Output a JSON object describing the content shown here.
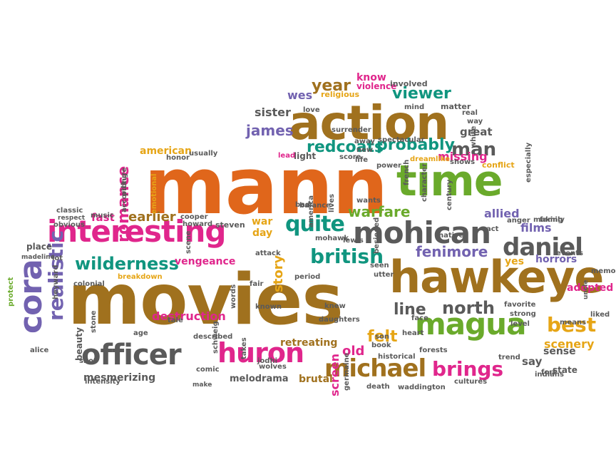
{
  "colors": {
    "brown": "#a0711e",
    "orange": "#e0661b",
    "green": "#6aaa2b",
    "pink": "#e0268c",
    "teal": "#10957f",
    "gray": "#5a5a5a",
    "purple": "#7262b0",
    "gold": "#e6a516"
  },
  "words": [
    {
      "text": "mann",
      "color": "orange",
      "weight": 10,
      "rotation": 0
    },
    {
      "text": "movies",
      "color": "brown",
      "weight": 10,
      "rotation": 0
    },
    {
      "text": "action",
      "color": "brown",
      "weight": 8,
      "rotation": 0
    },
    {
      "text": "hawkeye",
      "color": "brown",
      "weight": 8,
      "rotation": 0
    },
    {
      "text": "time",
      "color": "green",
      "weight": 7,
      "rotation": 0
    },
    {
      "text": "interesting",
      "color": "pink",
      "weight": 6,
      "rotation": 0
    },
    {
      "text": "mohican",
      "color": "gray",
      "weight": 6,
      "rotation": 0
    },
    {
      "text": "officer",
      "color": "gray",
      "weight": 6,
      "rotation": 0
    },
    {
      "text": "cora",
      "color": "purple",
      "weight": 6,
      "rotation": -90
    },
    {
      "text": "huron",
      "color": "pink",
      "weight": 5,
      "rotation": 0
    },
    {
      "text": "magua",
      "color": "green",
      "weight": 5,
      "rotation": 0
    },
    {
      "text": "daniel",
      "color": "gray",
      "weight": 5,
      "rotation": 0
    },
    {
      "text": "michael",
      "color": "brown",
      "weight": 5,
      "rotation": 0
    },
    {
      "text": "quite",
      "color": "teal",
      "weight": 5,
      "rotation": 0
    },
    {
      "text": "british",
      "color": "teal",
      "weight": 4,
      "rotation": 0
    },
    {
      "text": "wilderness",
      "color": "teal",
      "weight": 4,
      "rotation": 0
    },
    {
      "text": "realistic",
      "color": "purple",
      "weight": 4,
      "rotation": -90
    },
    {
      "text": "man",
      "color": "gray",
      "weight": 4,
      "rotation": 0
    },
    {
      "text": "redcoats",
      "color": "teal",
      "weight": 4,
      "rotation": 0
    },
    {
      "text": "probably",
      "color": "teal",
      "weight": 4,
      "rotation": 0
    },
    {
      "text": "viewer",
      "color": "teal",
      "weight": 4,
      "rotation": 0
    },
    {
      "text": "year",
      "color": "brown",
      "weight": 4,
      "rotation": 0
    },
    {
      "text": "james",
      "color": "purple",
      "weight": 3,
      "rotation": 0
    },
    {
      "text": "sister",
      "color": "gray",
      "weight": 3,
      "rotation": 0
    },
    {
      "text": "north",
      "color": "gray",
      "weight": 4,
      "rotation": 0
    },
    {
      "text": "line",
      "color": "gray",
      "weight": 4,
      "rotation": 0
    },
    {
      "text": "best",
      "color": "gold",
      "weight": 4,
      "rotation": 0
    },
    {
      "text": "brings",
      "color": "pink",
      "weight": 4,
      "rotation": 0
    },
    {
      "text": "fenimore",
      "color": "purple",
      "weight": 3,
      "rotation": 0
    },
    {
      "text": "felt",
      "color": "gold",
      "weight": 4,
      "rotation": 0
    },
    {
      "text": "romance",
      "color": "pink",
      "weight": 3,
      "rotation": -90
    },
    {
      "text": "warfare",
      "color": "green",
      "weight": 3,
      "rotation": 0
    },
    {
      "text": "films",
      "color": "purple",
      "weight": 3,
      "rotation": 0
    },
    {
      "text": "allied",
      "color": "purple",
      "weight": 3,
      "rotation": 0
    },
    {
      "text": "earlier",
      "color": "brown",
      "weight": 3,
      "rotation": 0
    },
    {
      "text": "american",
      "color": "gold",
      "weight": 2,
      "rotation": 0
    },
    {
      "text": "destruction",
      "color": "pink",
      "weight": 2,
      "rotation": 0
    },
    {
      "text": "mesmerizing",
      "color": "gray",
      "weight": 2,
      "rotation": 0
    },
    {
      "text": "melodrama",
      "color": "gray",
      "weight": 2,
      "rotation": 0
    },
    {
      "text": "brutal",
      "color": "brown",
      "weight": 2,
      "rotation": 0
    },
    {
      "text": "retreating",
      "color": "brown",
      "weight": 2,
      "rotation": 0
    },
    {
      "text": "vengeance",
      "color": "pink",
      "weight": 2,
      "rotation": 0
    },
    {
      "text": "story",
      "color": "gold",
      "weight": 3,
      "rotation": -90
    },
    {
      "text": "screen",
      "color": "pink",
      "weight": 2,
      "rotation": -90
    },
    {
      "text": "old",
      "color": "pink",
      "weight": 3,
      "rotation": 0
    },
    {
      "text": "scenery",
      "color": "gold",
      "weight": 2,
      "rotation": 0
    },
    {
      "text": "sense",
      "color": "gray",
      "weight": 2,
      "rotation": 0
    },
    {
      "text": "say",
      "color": "gray",
      "weight": 2,
      "rotation": 0
    },
    {
      "text": "state",
      "color": "gray",
      "weight": 1,
      "rotation": 0
    },
    {
      "text": "adopted",
      "color": "pink",
      "weight": 2,
      "rotation": 0
    },
    {
      "text": "horrors",
      "color": "purple",
      "weight": 2,
      "rotation": 0
    },
    {
      "text": "yes",
      "color": "gold",
      "weight": 2,
      "rotation": 0
    },
    {
      "text": "great",
      "color": "gray",
      "weight": 2,
      "rotation": 0
    },
    {
      "text": "missing",
      "color": "pink",
      "weight": 2,
      "rotation": 0
    },
    {
      "text": "conflict",
      "color": "gold",
      "weight": 1,
      "rotation": 0
    },
    {
      "text": "war",
      "color": "gold",
      "weight": 2,
      "rotation": 0
    },
    {
      "text": "day",
      "color": "gold",
      "weight": 2,
      "rotation": 0
    },
    {
      "text": "fast",
      "color": "pink",
      "weight": 2,
      "rotation": 0
    },
    {
      "text": "wes",
      "color": "purple",
      "weight": 2,
      "rotation": 0
    },
    {
      "text": "know",
      "color": "pink",
      "weight": 2,
      "rotation": 0
    },
    {
      "text": "violence",
      "color": "pink",
      "weight": 1,
      "rotation": 0
    },
    {
      "text": "religious",
      "color": "gold",
      "weight": 1,
      "rotation": 0
    },
    {
      "text": "involved",
      "color": "gray",
      "weight": 1,
      "rotation": 0
    },
    {
      "text": "matter",
      "color": "gray",
      "weight": 1,
      "rotation": 0
    },
    {
      "text": "real",
      "color": "gray",
      "weight": 1,
      "rotation": 0
    },
    {
      "text": "way",
      "color": "gray",
      "weight": 1,
      "rotation": 0
    },
    {
      "text": "light",
      "color": "gray",
      "weight": 1,
      "rotation": 0
    },
    {
      "text": "score",
      "color": "gray",
      "weight": 1,
      "rotation": 0
    },
    {
      "text": "life",
      "color": "gray",
      "weight": 1,
      "rotation": 0
    },
    {
      "text": "new",
      "color": "gray",
      "weight": 1,
      "rotation": 0
    },
    {
      "text": "away",
      "color": "gray",
      "weight": 1,
      "rotation": 0
    },
    {
      "text": "dreamlike",
      "color": "gold",
      "weight": 1,
      "rotation": 0
    },
    {
      "text": "lead",
      "color": "pink",
      "weight": 1,
      "rotation": 0
    },
    {
      "text": "usually",
      "color": "gray",
      "weight": 1,
      "rotation": 0
    },
    {
      "text": "honor",
      "color": "gray",
      "weight": 1,
      "rotation": 0
    },
    {
      "text": "according",
      "color": "gray",
      "weight": 1,
      "rotation": -90
    },
    {
      "text": "emotional",
      "color": "gold",
      "weight": 1,
      "rotation": -90
    },
    {
      "text": "picture",
      "color": "gray",
      "weight": 1,
      "rotation": -90
    },
    {
      "text": "classic",
      "color": "gray",
      "weight": 1,
      "rotation": 0
    },
    {
      "text": "respect",
      "color": "gray",
      "weight": 1,
      "rotation": 0
    },
    {
      "text": "obvious",
      "color": "gray",
      "weight": 1,
      "rotation": 0
    },
    {
      "text": "music",
      "color": "gray",
      "weight": 1,
      "rotation": 0
    },
    {
      "text": "cooper",
      "color": "gray",
      "weight": 1,
      "rotation": 0
    },
    {
      "text": "howard",
      "color": "gray",
      "weight": 1,
      "rotation": 0
    },
    {
      "text": "steven",
      "color": "gray",
      "weight": 1,
      "rotation": 0
    },
    {
      "text": "place",
      "color": "gray",
      "weight": 1,
      "rotation": 0
    },
    {
      "text": "madeline",
      "color": "gray",
      "weight": 1,
      "rotation": 0
    },
    {
      "text": "lot",
      "color": "gray",
      "weight": 1,
      "rotation": 0
    },
    {
      "text": "colonial",
      "color": "gray",
      "weight": 1,
      "rotation": 0
    },
    {
      "text": "breakdown",
      "color": "gold",
      "weight": 1,
      "rotation": 0
    },
    {
      "text": "protect",
      "color": "green",
      "weight": 1,
      "rotation": -90
    },
    {
      "text": "heyward",
      "color": "gray",
      "weight": 1,
      "rotation": -90
    },
    {
      "text": "alice",
      "color": "gray",
      "weight": 1,
      "rotation": 0
    },
    {
      "text": "beauty",
      "color": "gray",
      "weight": 1,
      "rotation": -90
    },
    {
      "text": "shot",
      "color": "gray",
      "weight": 1,
      "rotation": 0
    },
    {
      "text": "stone",
      "color": "gray",
      "weight": 1,
      "rotation": -90
    },
    {
      "text": "age",
      "color": "gray",
      "weight": 1,
      "rotation": 0
    },
    {
      "text": "intensity",
      "color": "gray",
      "weight": 1,
      "rotation": 0
    },
    {
      "text": "tale",
      "color": "gray",
      "weight": 1,
      "rotation": 0
    },
    {
      "text": "comic",
      "color": "gray",
      "weight": 1,
      "rotation": 0
    },
    {
      "text": "make",
      "color": "gray",
      "weight": 1,
      "rotation": 0
    },
    {
      "text": "described",
      "color": "gray",
      "weight": 1,
      "rotation": 0
    },
    {
      "text": "schweig",
      "color": "gray",
      "weight": 1,
      "rotation": -90
    },
    {
      "text": "takes",
      "color": "gray",
      "weight": 1,
      "rotation": -90
    },
    {
      "text": "jodhi",
      "color": "gray",
      "weight": 1,
      "rotation": 0
    },
    {
      "text": "wolves",
      "color": "gray",
      "weight": 1,
      "rotation": 0
    },
    {
      "text": "words",
      "color": "gray",
      "weight": 1,
      "rotation": -90
    },
    {
      "text": "fair",
      "color": "gray",
      "weight": 1,
      "rotation": 0
    },
    {
      "text": "known",
      "color": "gray",
      "weight": 1,
      "rotation": 0
    },
    {
      "text": "scene",
      "color": "gray",
      "weight": 1,
      "rotation": -90
    },
    {
      "text": "attack",
      "color": "gray",
      "weight": 1,
      "rotation": 0
    },
    {
      "text": "period",
      "color": "gray",
      "weight": 1,
      "rotation": 0
    },
    {
      "text": "america",
      "color": "gray",
      "weight": 1,
      "rotation": -90
    },
    {
      "text": "mohawk",
      "color": "gray",
      "weight": 1,
      "rotation": 0
    },
    {
      "text": "lewis",
      "color": "gray",
      "weight": 1,
      "rotation": 0
    },
    {
      "text": "daughters",
      "color": "gray",
      "weight": 1,
      "rotation": 0
    },
    {
      "text": "knew",
      "color": "gray",
      "weight": 1,
      "rotation": 0
    },
    {
      "text": "besieged",
      "color": "gray",
      "weight": 1,
      "rotation": -90
    },
    {
      "text": "seen",
      "color": "gray",
      "weight": 1,
      "rotation": 0
    },
    {
      "text": "utter",
      "color": "gray",
      "weight": 1,
      "rotation": 0
    },
    {
      "text": "face",
      "color": "gray",
      "weight": 1,
      "rotation": 0
    },
    {
      "text": "heart",
      "color": "gray",
      "weight": 1,
      "rotation": 0
    },
    {
      "text": "book",
      "color": "gray",
      "weight": 1,
      "rotation": 0
    },
    {
      "text": "son",
      "color": "gray",
      "weight": 1,
      "rotation": 0
    },
    {
      "text": "historical",
      "color": "gray",
      "weight": 1,
      "rotation": 0
    },
    {
      "text": "germaine",
      "color": "gray",
      "weight": 1,
      "rotation": -90
    },
    {
      "text": "death",
      "color": "gray",
      "weight": 1,
      "rotation": 0
    },
    {
      "text": "waddington",
      "color": "gray",
      "weight": 1,
      "rotation": 0
    },
    {
      "text": "cultures",
      "color": "gray",
      "weight": 1,
      "rotation": 0
    },
    {
      "text": "forests",
      "color": "gray",
      "weight": 1,
      "rotation": 0
    },
    {
      "text": "trend",
      "color": "gray",
      "weight": 1,
      "rotation": 0
    },
    {
      "text": "fort",
      "color": "gray",
      "weight": 1,
      "rotation": 0
    },
    {
      "text": "indians",
      "color": "gray",
      "weight": 1,
      "rotation": 0
    },
    {
      "text": "favorite",
      "color": "gray",
      "weight": 1,
      "rotation": 0
    },
    {
      "text": "strong",
      "color": "gray",
      "weight": 1,
      "rotation": 0
    },
    {
      "text": "level",
      "color": "gray",
      "weight": 1,
      "rotation": 0
    },
    {
      "text": "means",
      "color": "gray",
      "weight": 1,
      "rotation": 0
    },
    {
      "text": "liked",
      "color": "gray",
      "weight": 1,
      "rotation": 0
    },
    {
      "text": "memory",
      "color": "gray",
      "weight": 1,
      "rotation": 0
    },
    {
      "text": "events",
      "color": "gray",
      "weight": 1,
      "rotation": 0
    },
    {
      "text": "family",
      "color": "gray",
      "weight": 1,
      "rotation": 0
    },
    {
      "text": "making",
      "color": "gray",
      "weight": 1,
      "rotation": 0
    },
    {
      "text": "anger",
      "color": "gray",
      "weight": 1,
      "rotation": 0
    },
    {
      "text": "act",
      "color": "gray",
      "weight": 1,
      "rotation": 0
    },
    {
      "text": "native",
      "color": "gray",
      "weight": 1,
      "rotation": 0
    },
    {
      "text": "century",
      "color": "gray",
      "weight": 1,
      "rotation": -90
    },
    {
      "text": "especially",
      "color": "gray",
      "weight": 1,
      "rotation": -90
    },
    {
      "text": "character",
      "color": "gray",
      "weight": 1,
      "rotation": -90
    },
    {
      "text": "french",
      "color": "gray",
      "weight": 1,
      "rotation": -90
    },
    {
      "text": "wants",
      "color": "gray",
      "weight": 1,
      "rotation": 0
    },
    {
      "text": "lives",
      "color": "gray",
      "weight": 1,
      "rotation": -90
    },
    {
      "text": "bad",
      "color": "gray",
      "weight": 1,
      "rotation": 0
    },
    {
      "text": "balance",
      "color": "gray",
      "weight": 1,
      "rotation": 0
    },
    {
      "text": "shows",
      "color": "gray",
      "weight": 1,
      "rotation": 0
    },
    {
      "text": "white",
      "color": "gray",
      "weight": 1,
      "rotation": -90
    },
    {
      "text": "spectacular",
      "color": "gray",
      "weight": 1,
      "rotation": 0
    },
    {
      "text": "surrender",
      "color": "gray",
      "weight": 1,
      "rotation": 0
    },
    {
      "text": "mind",
      "color": "gray",
      "weight": 1,
      "rotation": 0
    },
    {
      "text": "love",
      "color": "gray",
      "weight": 1,
      "rotation": 0
    },
    {
      "text": "power",
      "color": "gray",
      "weight": 1,
      "rotation": 0
    },
    {
      "text": "uncle",
      "color": "gray",
      "weight": 1,
      "rotation": -90
    }
  ]
}
